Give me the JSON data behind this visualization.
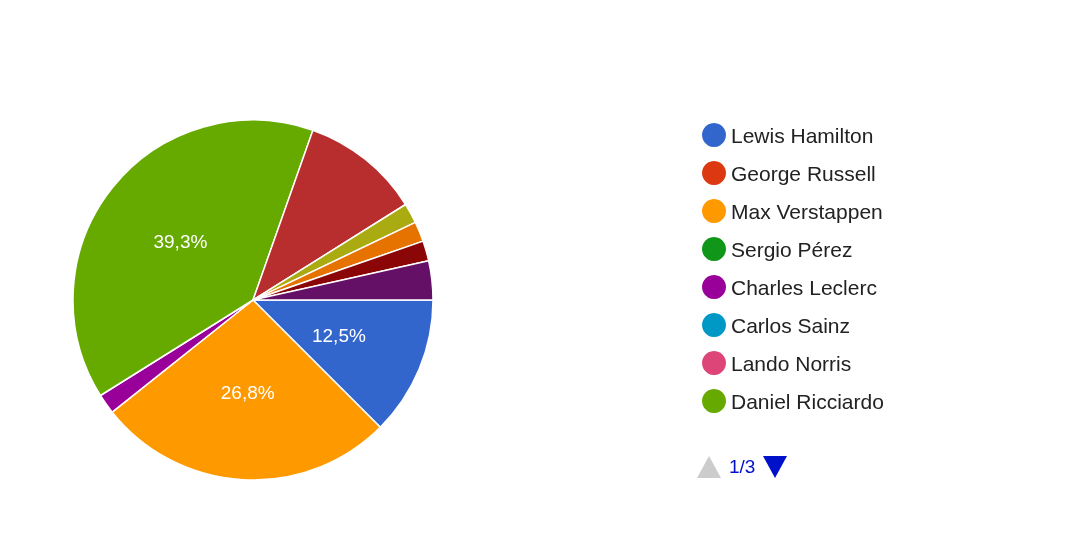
{
  "chart_data": {
    "type": "pie",
    "categories": [
      "Lewis Hamilton",
      "George Russell",
      "Max Verstappen",
      "Sergio Pérez",
      "Charles Leclerc",
      "Carlos Sainz",
      "Lando Norris",
      "Daniel Ricciardo",
      null,
      null,
      null,
      null,
      null
    ],
    "values": [
      12.5,
      0,
      26.8,
      0,
      1.8,
      0,
      0,
      39.3,
      10.7,
      1.8,
      1.8,
      1.8,
      3.5
    ],
    "colors": [
      "#3366cc",
      "#dc3912",
      "#ff9900",
      "#109618",
      "#990099",
      "#0099c6",
      "#dd4477",
      "#66aa00",
      "#b82e2e",
      "#aaaa11",
      "#e67300",
      "#8b0707",
      "#651067"
    ],
    "value_labels": [
      "12,5%",
      null,
      "26,8%",
      null,
      null,
      null,
      null,
      "39,3%",
      null,
      null,
      null,
      null,
      null
    ],
    "legend": "right",
    "annotations": [
      "1/3"
    ]
  }
}
